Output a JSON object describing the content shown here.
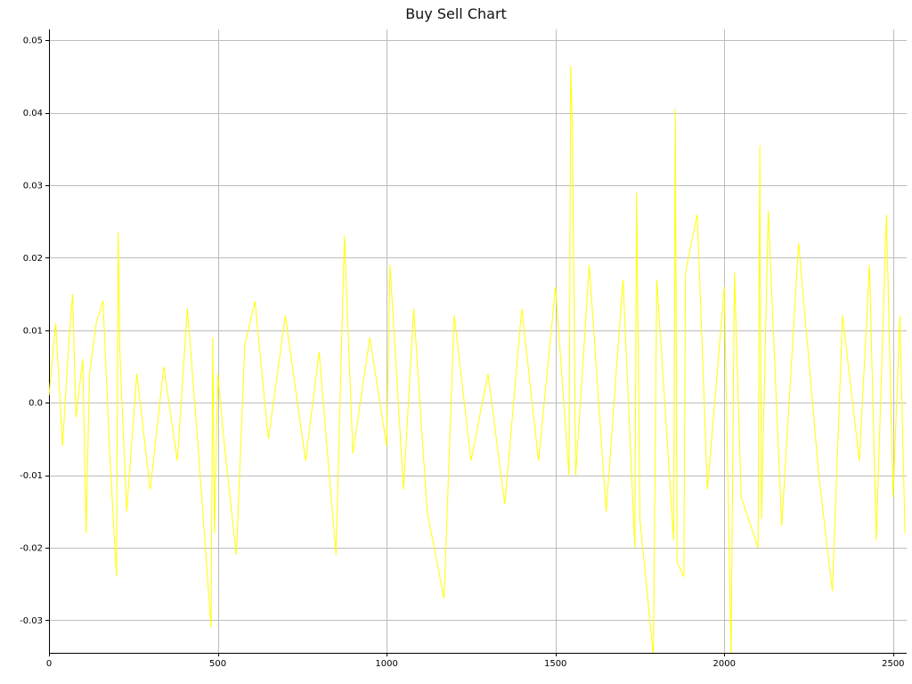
{
  "chart_data": {
    "type": "line",
    "title": "Buy Sell Chart",
    "xlabel": "",
    "ylabel": "",
    "xlim": [
      0,
      2540
    ],
    "ylim": [
      -0.0345,
      0.0515
    ],
    "grid": true,
    "legend": "none",
    "x_ticks": [
      0,
      500,
      1000,
      1500,
      2000,
      2500
    ],
    "x_tick_labels": [
      "0",
      "500",
      "1000",
      "1500",
      "2000",
      "2500"
    ],
    "y_ticks": [
      -0.03,
      -0.02,
      -0.01,
      0.0,
      0.01,
      0.02,
      0.03,
      0.04,
      0.05
    ],
    "y_tick_labels": [
      "-0.03",
      "-0.02",
      "-0.01",
      "0.0",
      "0.01",
      "0.02",
      "0.03",
      "0.04",
      "0.05"
    ],
    "colors": {
      "line": "#ffff00",
      "grid": "#bdbdbd",
      "axis": "#000000",
      "background": "#ffffff"
    },
    "series": [
      {
        "x": [
          0,
          20,
          40,
          60,
          70,
          80,
          100,
          110,
          120,
          140,
          160,
          180,
          200,
          205,
          210,
          230,
          260,
          300,
          340,
          380,
          410,
          440,
          480,
          485,
          490,
          500,
          520,
          555,
          580,
          610,
          650,
          700,
          760,
          800,
          850,
          875,
          900,
          950,
          1000,
          1010,
          1050,
          1080,
          1120,
          1170,
          1200,
          1250,
          1300,
          1350,
          1400,
          1450,
          1500,
          1540,
          1545,
          1550,
          1560,
          1600,
          1650,
          1700,
          1735,
          1740,
          1750,
          1790,
          1800,
          1850,
          1855,
          1860,
          1880,
          1885,
          1920,
          1950,
          2000,
          2020,
          2030,
          2050,
          2100,
          2105,
          2110,
          2130,
          2170,
          2220,
          2280,
          2320,
          2350,
          2400,
          2430,
          2450,
          2480,
          2500,
          2520,
          2535
        ],
        "y": [
          0.001,
          0.011,
          -0.006,
          0.009,
          0.015,
          -0.002,
          0.006,
          -0.018,
          0.004,
          0.011,
          0.014,
          -0.007,
          -0.024,
          0.0235,
          0.007,
          -0.015,
          0.004,
          -0.012,
          0.005,
          -0.008,
          0.013,
          -0.005,
          -0.031,
          0.009,
          -0.018,
          0.004,
          -0.006,
          -0.021,
          0.008,
          0.014,
          -0.005,
          0.012,
          -0.008,
          0.007,
          -0.021,
          0.023,
          -0.007,
          0.009,
          -0.006,
          0.019,
          -0.012,
          0.013,
          -0.015,
          -0.027,
          0.012,
          -0.008,
          0.004,
          -0.014,
          0.013,
          -0.008,
          0.016,
          -0.01,
          0.0465,
          0.0375,
          -0.01,
          0.019,
          -0.015,
          0.017,
          -0.02,
          0.029,
          -0.016,
          -0.035,
          0.017,
          -0.019,
          0.0405,
          -0.022,
          -0.024,
          0.018,
          0.026,
          -0.012,
          0.016,
          -0.035,
          0.018,
          -0.013,
          -0.02,
          0.0355,
          -0.016,
          0.0265,
          -0.017,
          0.022,
          -0.01,
          -0.026,
          0.012,
          -0.008,
          0.019,
          -0.019,
          0.026,
          -0.013,
          0.012,
          -0.018
        ]
      }
    ]
  }
}
